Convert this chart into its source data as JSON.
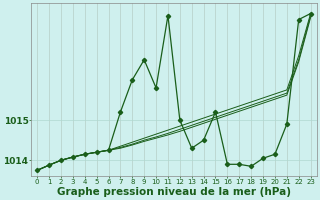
{
  "title": "Graphe pression niveau de la mer (hPa)",
  "background_color": "#cff0ee",
  "plot_bg_color": "#cff0ee",
  "grid_color": "#b0d8d0",
  "line_color": "#1a5e1a",
  "x_values": [
    0,
    1,
    2,
    3,
    4,
    5,
    6,
    7,
    8,
    9,
    10,
    11,
    12,
    13,
    14,
    15,
    16,
    17,
    18,
    19,
    20,
    21,
    22,
    23
  ],
  "x_labels": [
    "0",
    "1",
    "2",
    "3",
    "4",
    "5",
    "6",
    "7",
    "8",
    "9",
    "10",
    "11",
    "12",
    "13",
    "14",
    "15",
    "16",
    "17",
    "18",
    "19",
    "20",
    "21",
    "22",
    "23"
  ],
  "y_main": [
    1013.75,
    1013.88,
    1014.0,
    1014.08,
    1014.15,
    1014.2,
    1014.25,
    1015.2,
    1016.0,
    1016.5,
    1015.8,
    1017.6,
    1015.0,
    1014.3,
    1014.5,
    1015.2,
    1013.9,
    1013.9,
    1013.85,
    1014.05,
    1014.15,
    1014.9,
    1017.5,
    1017.65
  ],
  "y_smooth1": [
    1013.75,
    1013.88,
    1014.0,
    1014.08,
    1014.15,
    1014.2,
    1014.25,
    1014.35,
    1014.45,
    1014.55,
    1014.65,
    1014.75,
    1014.85,
    1014.95,
    1015.05,
    1015.15,
    1015.25,
    1015.35,
    1015.45,
    1015.55,
    1015.65,
    1015.75,
    1016.6,
    1017.65
  ],
  "y_smooth2": [
    1013.75,
    1013.88,
    1014.0,
    1014.08,
    1014.15,
    1014.2,
    1014.25,
    1014.32,
    1014.4,
    1014.5,
    1014.58,
    1014.67,
    1014.77,
    1014.87,
    1014.97,
    1015.07,
    1015.17,
    1015.27,
    1015.37,
    1015.47,
    1015.57,
    1015.67,
    1016.5,
    1017.6
  ],
  "y_smooth3": [
    1013.75,
    1013.88,
    1014.0,
    1014.08,
    1014.15,
    1014.2,
    1014.25,
    1014.3,
    1014.38,
    1014.47,
    1014.55,
    1014.63,
    1014.72,
    1014.82,
    1014.92,
    1015.02,
    1015.12,
    1015.22,
    1015.32,
    1015.42,
    1015.52,
    1015.62,
    1016.45,
    1017.55
  ],
  "ylim_min": 1013.6,
  "ylim_max": 1017.9,
  "yticks": [
    1014,
    1015
  ],
  "title_fontsize": 7.5,
  "tick_fontsize": 6.5
}
